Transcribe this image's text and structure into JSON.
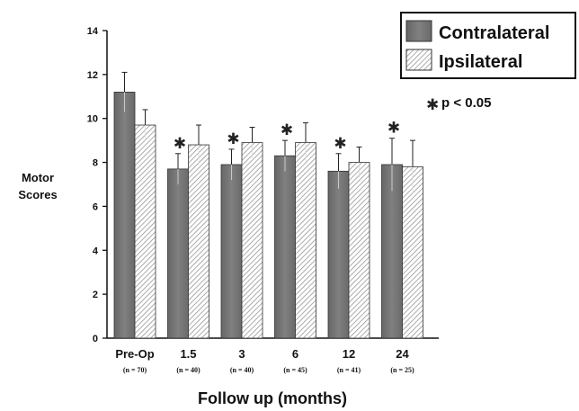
{
  "chart_data": {
    "type": "bar",
    "xlabel": "Follow up (months)",
    "ylabel_lines": [
      "Motor",
      "Scores"
    ],
    "ylim": [
      0,
      14
    ],
    "yticks": [
      0,
      2,
      4,
      6,
      8,
      10,
      12,
      14
    ],
    "categories": [
      "Pre-Op",
      "1.5",
      "3",
      "6",
      "12",
      "24"
    ],
    "sample_sizes": [
      "(n = 70)",
      "(n = 40)",
      "(n = 40)",
      "(n = 45)",
      "(n = 41)",
      "(n = 25)"
    ],
    "series": [
      {
        "name": "Contralateral",
        "values": [
          11.2,
          7.7,
          7.9,
          8.3,
          7.6,
          7.9
        ],
        "errors": [
          0.9,
          0.7,
          0.7,
          0.7,
          0.8,
          1.2
        ],
        "fill": "solid-gray",
        "color": "#777777"
      },
      {
        "name": "Ipsilateral",
        "values": [
          9.7,
          8.8,
          8.9,
          8.9,
          8.0,
          7.8
        ],
        "errors": [
          0.7,
          0.9,
          0.7,
          0.9,
          0.7,
          1.2
        ],
        "fill": "diagonal-hatch",
        "color": "#bbbbbb"
      }
    ],
    "significance_marks": [
      false,
      true,
      true,
      true,
      true,
      true
    ],
    "significance_legend": "p < 0.05",
    "significance_symbol": "✱",
    "legend_position": "top-right",
    "grid": false
  }
}
